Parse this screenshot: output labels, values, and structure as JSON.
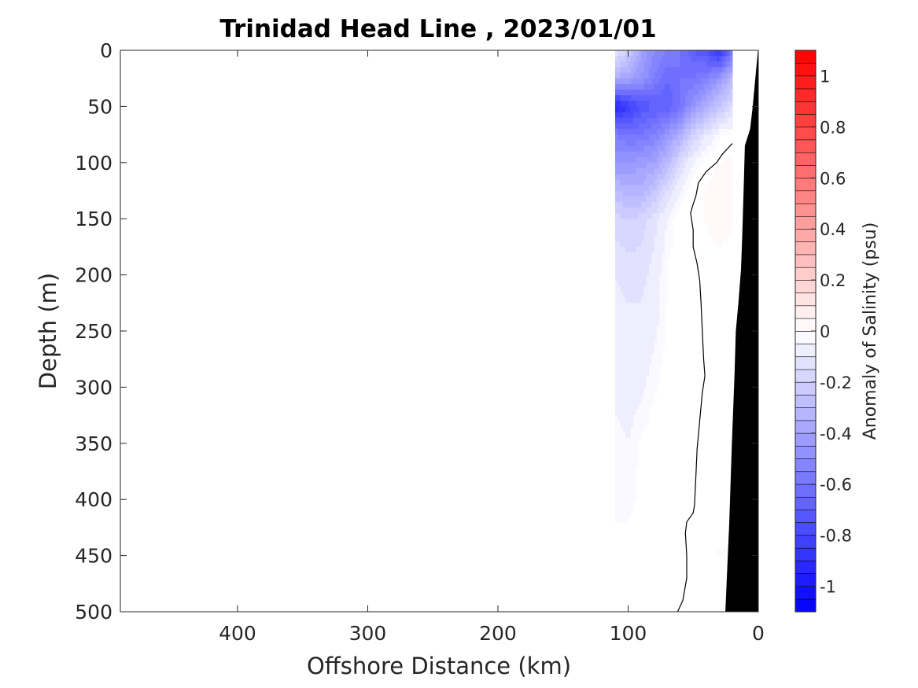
{
  "chart_data": {
    "type": "heatmap",
    "title": "Trinidad Head Line , 2023/01/01",
    "xlabel": "Offshore Distance (km)",
    "ylabel": "Depth (m)",
    "x_reversed": true,
    "y_reversed": true,
    "xlim": [
      0,
      490
    ],
    "ylim": [
      0,
      500
    ],
    "xticks": [
      400,
      300,
      200,
      100,
      0
    ],
    "yticks": [
      0,
      50,
      100,
      150,
      200,
      250,
      300,
      350,
      400,
      450,
      500
    ],
    "grid": false,
    "colorbar": {
      "label": "Anomaly of Salinity (psu)",
      "range": [
        -1.1,
        1.1
      ],
      "ticks": [
        -1,
        -0.8,
        -0.6,
        -0.4,
        -0.2,
        0,
        0.2,
        0.4,
        0.6,
        0.8,
        1
      ],
      "levels": 44,
      "colors": {
        "negative": "#0000ff",
        "zero": "#ffffff",
        "positive": "#ff0000"
      }
    },
    "zero_contour": [
      [
        20,
        83
      ],
      [
        24,
        88
      ],
      [
        28,
        93
      ],
      [
        32,
        100
      ],
      [
        40,
        108
      ],
      [
        46,
        118
      ],
      [
        48,
        130
      ],
      [
        50,
        137
      ],
      [
        52,
        145
      ],
      [
        50,
        160
      ],
      [
        50,
        175
      ],
      [
        47,
        190
      ],
      [
        45,
        205
      ],
      [
        44,
        225
      ],
      [
        43,
        250
      ],
      [
        42,
        275
      ],
      [
        41,
        290
      ],
      [
        43,
        305
      ],
      [
        45,
        330
      ],
      [
        47,
        355
      ],
      [
        48,
        380
      ],
      [
        49,
        405
      ],
      [
        50,
        412
      ],
      [
        55,
        420
      ],
      [
        56,
        430
      ],
      [
        55,
        450
      ],
      [
        55,
        470
      ],
      [
        58,
        490
      ],
      [
        62,
        500
      ]
    ],
    "bathymetry": [
      [
        0,
        0
      ],
      [
        4,
        50
      ],
      [
        6,
        70
      ],
      [
        10,
        85
      ],
      [
        11,
        125
      ],
      [
        12,
        165
      ],
      [
        13,
        195
      ],
      [
        15,
        225
      ],
      [
        17,
        250
      ],
      [
        18,
        290
      ],
      [
        20,
        350
      ],
      [
        22,
        420
      ],
      [
        25,
        500
      ]
    ],
    "field": [
      {
        "depth": 0,
        "x": [
          110,
          100,
          90,
          80,
          70,
          60,
          50,
          40,
          30,
          20
        ],
        "values": [
          -0.1,
          -0.2,
          -0.4,
          -0.5,
          -0.55,
          -0.6,
          -0.7,
          -0.75,
          -0.9,
          -0.6
        ]
      },
      {
        "depth": 25,
        "x": [
          110,
          100,
          90,
          80,
          70,
          60,
          50,
          40,
          30,
          20
        ],
        "values": [
          -0.35,
          -0.4,
          -0.45,
          -0.55,
          -0.65,
          -0.6,
          -0.6,
          -0.55,
          -0.45,
          -0.3
        ]
      },
      {
        "depth": 50,
        "x": [
          110,
          100,
          90,
          80,
          70,
          60,
          50,
          40,
          30,
          20
        ],
        "values": [
          -0.95,
          -0.85,
          -0.75,
          -0.7,
          -0.7,
          -0.6,
          -0.45,
          -0.35,
          -0.25,
          -0.15
        ]
      },
      {
        "depth": 75,
        "x": [
          110,
          100,
          90,
          80,
          70,
          60,
          50,
          40,
          30,
          20
        ],
        "values": [
          -0.55,
          -0.6,
          -0.6,
          -0.55,
          -0.45,
          -0.35,
          -0.2,
          -0.1,
          -0.03,
          0.0
        ]
      },
      {
        "depth": 100,
        "x": [
          110,
          100,
          90,
          80,
          70,
          60,
          50,
          40,
          30,
          20
        ],
        "values": [
          -0.45,
          -0.45,
          -0.42,
          -0.4,
          -0.3,
          -0.15,
          -0.05,
          0.0,
          0.03,
          0.03
        ]
      },
      {
        "depth": 125,
        "x": [
          110,
          100,
          90,
          80,
          70,
          60,
          50,
          40,
          30,
          20
        ],
        "values": [
          -0.3,
          -0.32,
          -0.33,
          -0.25,
          -0.15,
          -0.05,
          0.0,
          0.03,
          0.05,
          0.03
        ]
      },
      {
        "depth": 150,
        "x": [
          110,
          100,
          90,
          80,
          70,
          60,
          50,
          40,
          30,
          20
        ],
        "values": [
          -0.18,
          -0.2,
          -0.18,
          -0.12,
          -0.05,
          0.0,
          0.01,
          0.03,
          0.05,
          0.03
        ]
      },
      {
        "depth": 200,
        "x": [
          110,
          100,
          90,
          80,
          70,
          60,
          50,
          40,
          30,
          20
        ],
        "values": [
          -0.1,
          -0.12,
          -0.12,
          -0.08,
          -0.02,
          0.0,
          0.0,
          0.0,
          0.0,
          0.0
        ]
      },
      {
        "depth": 250,
        "x": [
          110,
          100,
          90,
          80,
          70,
          60,
          50,
          40,
          30,
          20
        ],
        "values": [
          -0.08,
          -0.08,
          -0.08,
          -0.06,
          -0.02,
          0.0,
          0.0,
          0.0,
          0.0,
          0.0
        ]
      },
      {
        "depth": 300,
        "x": [
          110,
          100,
          90,
          80,
          70,
          60,
          50,
          40,
          30,
          20
        ],
        "values": [
          -0.06,
          -0.07,
          -0.06,
          -0.03,
          0.0,
          0.0,
          0.0,
          0.0,
          0.0,
          0.0
        ]
      },
      {
        "depth": 350,
        "x": [
          110,
          100,
          90,
          80,
          70,
          60,
          50,
          40,
          30,
          20
        ],
        "values": [
          -0.04,
          -0.05,
          -0.02,
          0.0,
          0.0,
          0.0,
          0.0,
          0.0,
          0.0,
          0.0
        ]
      },
      {
        "depth": 400,
        "x": [
          110,
          100,
          90,
          80,
          70,
          60,
          50,
          40,
          30,
          20
        ],
        "values": [
          -0.04,
          -0.04,
          -0.01,
          0.0,
          0.0,
          0.0,
          0.0,
          0.0,
          0.0,
          0.0
        ]
      },
      {
        "depth": 450,
        "x": [
          110,
          100,
          90,
          80,
          70,
          60,
          50,
          40,
          30,
          20
        ],
        "values": [
          0.0,
          0.0,
          0.0,
          0.0,
          0.0,
          0.0,
          0.0,
          0.01,
          0.03,
          0.02
        ]
      }
    ]
  }
}
